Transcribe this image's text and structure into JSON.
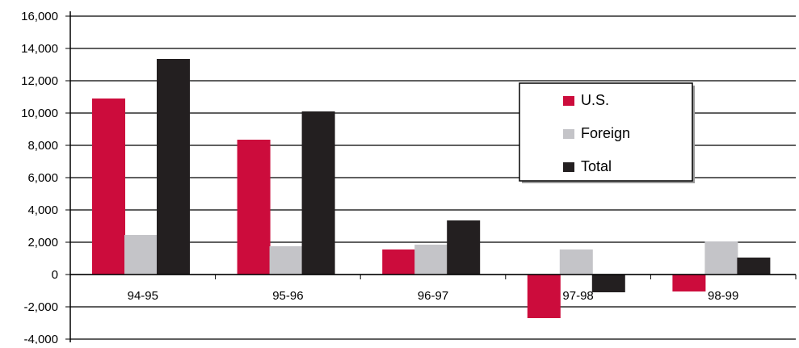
{
  "chart_data": {
    "type": "bar",
    "categories": [
      "94-95",
      "95-96",
      "96-97",
      "97-98",
      "98-99"
    ],
    "series": [
      {
        "name": "U.S.",
        "color": "#cc0c3c",
        "values": [
          10900,
          8350,
          1550,
          -2700,
          -1050
        ]
      },
      {
        "name": "Foreign",
        "color": "#c4c4c8",
        "values": [
          2450,
          1750,
          1850,
          1550,
          2050
        ]
      },
      {
        "name": "Total",
        "color": "#231f20",
        "values": [
          13350,
          10100,
          3350,
          -1100,
          1050
        ]
      }
    ],
    "yticks": [
      "16,000",
      "14,000",
      "12,000",
      "10,000",
      "8,000",
      "6,000",
      "4,000",
      "2,000",
      "0",
      "-2,000",
      "-4,000"
    ],
    "ylim": [
      -4000,
      16000
    ],
    "grid": true,
    "legend_position": "top-right"
  }
}
